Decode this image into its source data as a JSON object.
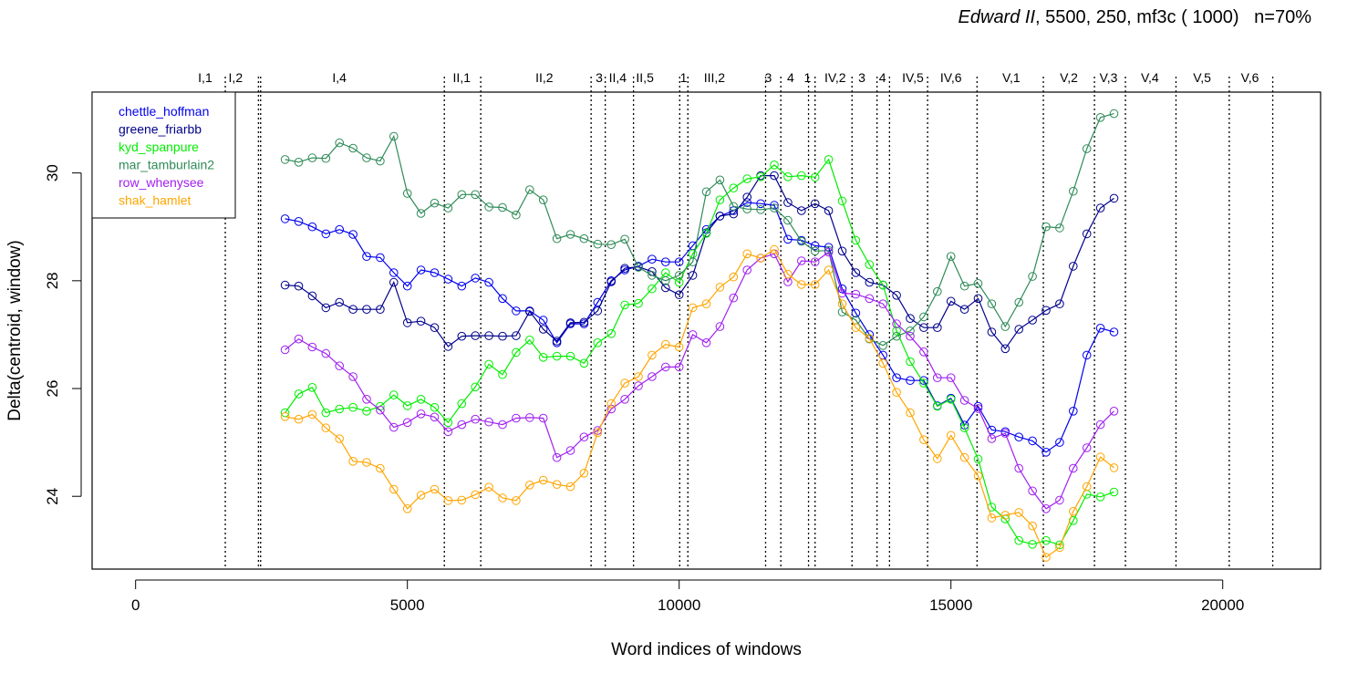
{
  "title": {
    "play": "Edward II",
    "params": ", 5500, 250, mf3c ( 1000)",
    "n": "n=70%"
  },
  "chart_data": {
    "type": "line",
    "xlabel": "Word indices of windows",
    "ylabel": "Delta(centroid, window)",
    "xlim": [
      -800,
      21800
    ],
    "ylim": [
      22.65,
      31.5
    ],
    "xticks": [
      0,
      5000,
      10000,
      15000,
      20000
    ],
    "xtick_labels": [
      "0",
      "5000",
      "10000",
      "15000",
      "20000"
    ],
    "yticks": [
      24,
      26,
      28,
      30
    ],
    "ytick_labels": [
      "24",
      "26",
      "28",
      "30"
    ],
    "grid": false,
    "legend_position": "top-left",
    "scene_boundaries": [
      1650,
      2260,
      2300,
      5680,
      6350,
      8380,
      8640,
      9160,
      10010,
      10160,
      11590,
      11870,
      12380,
      12500,
      13180,
      13640,
      13870,
      14570,
      15480,
      16700,
      17640,
      18210,
      19140,
      20120,
      20920
    ],
    "scene_labels": [
      {
        "label": "I,1",
        "x": 1280
      },
      {
        "label": "I,2",
        "x": 1840
      },
      {
        "label": "I,4",
        "x": 3750
      },
      {
        "label": "II,1",
        "x": 6000
      },
      {
        "label": "II,2",
        "x": 7520
      },
      {
        "label": "3",
        "x": 8530
      },
      {
        "label": "II,4",
        "x": 8870
      },
      {
        "label": "II,5",
        "x": 9370
      },
      {
        "label": "1",
        "x": 10080
      },
      {
        "label": "III,2",
        "x": 10650
      },
      {
        "label": "3",
        "x": 11640
      },
      {
        "label": "4",
        "x": 12050
      },
      {
        "label": "1",
        "x": 12360
      },
      {
        "label": "IV,2",
        "x": 12870
      },
      {
        "label": "3",
        "x": 13360
      },
      {
        "label": "4",
        "x": 13740
      },
      {
        "label": "IV,5",
        "x": 14300
      },
      {
        "label": "IV,6",
        "x": 15000
      },
      {
        "label": "V,1",
        "x": 16110
      },
      {
        "label": "V,2",
        "x": 17170
      },
      {
        "label": "V,3",
        "x": 17900
      },
      {
        "label": "V,4",
        "x": 18660
      },
      {
        "label": "V,5",
        "x": 19620
      },
      {
        "label": "V,6",
        "x": 20500
      }
    ],
    "x": [
      2750,
      3000,
      3250,
      3500,
      3750,
      4000,
      4250,
      4500,
      4750,
      5000,
      5250,
      5500,
      5750,
      6000,
      6250,
      6500,
      6750,
      7000,
      7250,
      7500,
      7750,
      8000,
      8250,
      8500,
      8750,
      9000,
      9250,
      9500,
      9750,
      10000,
      10250,
      10500,
      10750,
      11000,
      11250,
      11500,
      11750,
      12000,
      12250,
      12500,
      12750,
      13000,
      13250,
      13500,
      13750,
      14000,
      14250,
      14500,
      14750,
      15000,
      15250,
      15500,
      15750,
      16000,
      16250,
      16500,
      16750,
      17000,
      17250,
      17500,
      17750,
      18000
    ],
    "series": [
      {
        "name": "chettle_hoffman",
        "color": "#0000EE",
        "values": [
          29.15,
          29.1,
          29.0,
          28.87,
          28.95,
          28.86,
          28.45,
          28.43,
          28.15,
          27.9,
          28.2,
          28.15,
          28.03,
          27.9,
          28.05,
          27.97,
          27.67,
          27.44,
          27.44,
          27.27,
          26.85,
          27.2,
          27.2,
          27.6,
          28.0,
          28.2,
          28.27,
          28.4,
          28.35,
          28.35,
          28.65,
          28.95,
          29.2,
          29.3,
          29.45,
          29.43,
          29.4,
          28.77,
          28.75,
          28.65,
          28.62,
          27.85,
          27.4,
          27.0,
          26.62,
          26.2,
          26.15,
          26.15,
          25.68,
          25.82,
          25.32,
          25.67,
          25.23,
          25.2,
          25.1,
          25.03,
          24.82,
          25.0,
          25.58,
          26.62,
          27.12,
          27.05
        ]
      },
      {
        "name": "greene_friarbb",
        "color": "#00008B",
        "values": [
          27.92,
          27.9,
          27.72,
          27.5,
          27.6,
          27.47,
          27.47,
          27.47,
          27.97,
          27.22,
          27.25,
          27.13,
          26.78,
          26.97,
          26.98,
          26.98,
          26.97,
          26.98,
          27.43,
          27.1,
          26.88,
          27.22,
          27.23,
          27.44,
          27.98,
          28.23,
          28.26,
          28.17,
          27.87,
          27.74,
          28.1,
          28.89,
          29.2,
          29.24,
          29.55,
          29.95,
          29.95,
          29.45,
          29.3,
          29.43,
          29.3,
          28.55,
          28.15,
          27.97,
          27.92,
          27.73,
          27.3,
          27.13,
          27.13,
          27.62,
          27.47,
          27.67,
          27.05,
          26.74,
          27.1,
          27.27,
          27.45,
          27.57,
          28.27,
          28.87,
          29.35,
          29.53
        ]
      },
      {
        "name": "kyd_spanpure",
        "color": "#00EE00",
        "values": [
          25.55,
          25.9,
          26.02,
          25.55,
          25.62,
          25.65,
          25.58,
          25.67,
          25.88,
          25.68,
          25.8,
          25.65,
          25.37,
          25.72,
          26.03,
          26.45,
          26.26,
          26.67,
          26.9,
          26.58,
          26.6,
          26.6,
          26.47,
          26.85,
          27.02,
          27.55,
          27.58,
          27.85,
          28.15,
          27.97,
          28.5,
          28.88,
          29.5,
          29.72,
          29.89,
          29.93,
          30.15,
          29.93,
          29.95,
          29.92,
          30.25,
          29.48,
          28.75,
          28.3,
          27.92,
          27.07,
          26.5,
          26.1,
          25.67,
          25.8,
          25.27,
          24.69,
          23.8,
          23.58,
          23.18,
          23.11,
          23.18,
          23.1,
          23.55,
          24.04,
          23.99,
          24.08
        ]
      },
      {
        "name": "mar_tamburlain2",
        "color": "#2E8B57",
        "values": [
          30.25,
          30.2,
          30.28,
          30.27,
          30.56,
          30.46,
          30.28,
          30.22,
          30.68,
          29.62,
          29.25,
          29.44,
          29.35,
          29.6,
          29.6,
          29.37,
          29.36,
          29.22,
          29.69,
          29.5,
          28.78,
          28.86,
          28.78,
          28.68,
          28.67,
          28.77,
          28.25,
          28.1,
          28.0,
          28.1,
          28.35,
          29.65,
          29.87,
          29.38,
          29.33,
          29.32,
          29.35,
          29.12,
          28.73,
          28.55,
          28.56,
          27.42,
          27.27,
          26.92,
          26.8,
          26.97,
          27.07,
          27.33,
          27.8,
          28.45,
          27.9,
          27.95,
          27.57,
          27.15,
          27.6,
          28.08,
          29.0,
          28.98,
          29.66,
          30.45,
          31.03,
          31.1
        ]
      },
      {
        "name": "row_whenysee",
        "color": "#A020F0",
        "values": [
          26.72,
          26.92,
          26.77,
          26.65,
          26.42,
          26.22,
          25.8,
          25.6,
          25.28,
          25.37,
          25.53,
          25.47,
          25.2,
          25.33,
          25.43,
          25.38,
          25.33,
          25.45,
          25.46,
          25.45,
          24.72,
          24.85,
          25.1,
          25.22,
          25.62,
          25.8,
          26.05,
          26.22,
          26.4,
          26.4,
          27.0,
          26.85,
          27.15,
          27.68,
          28.2,
          28.42,
          28.5,
          27.98,
          28.37,
          28.35,
          28.53,
          27.77,
          27.75,
          27.67,
          27.57,
          27.2,
          26.97,
          26.68,
          26.2,
          26.2,
          25.78,
          25.63,
          25.07,
          25.17,
          24.52,
          24.1,
          23.77,
          23.93,
          24.52,
          24.9,
          25.33,
          25.58
        ]
      },
      {
        "name": "shak_hamlet",
        "color": "#FFA500",
        "values": [
          25.48,
          25.43,
          25.52,
          25.27,
          25.07,
          24.65,
          24.63,
          24.52,
          24.13,
          23.77,
          24.02,
          24.13,
          23.92,
          23.93,
          24.03,
          24.17,
          23.97,
          23.92,
          24.21,
          24.3,
          24.22,
          24.18,
          24.43,
          25.18,
          25.72,
          26.1,
          26.22,
          26.62,
          26.82,
          26.77,
          27.5,
          27.57,
          27.88,
          28.07,
          28.5,
          28.42,
          28.58,
          28.12,
          27.93,
          27.93,
          28.2,
          27.57,
          27.13,
          26.93,
          26.47,
          25.93,
          25.55,
          25.05,
          24.7,
          25.13,
          24.72,
          24.38,
          23.6,
          23.65,
          23.7,
          23.45,
          22.87,
          23.05,
          23.72,
          24.18,
          24.73,
          24.53
        ]
      }
    ]
  }
}
